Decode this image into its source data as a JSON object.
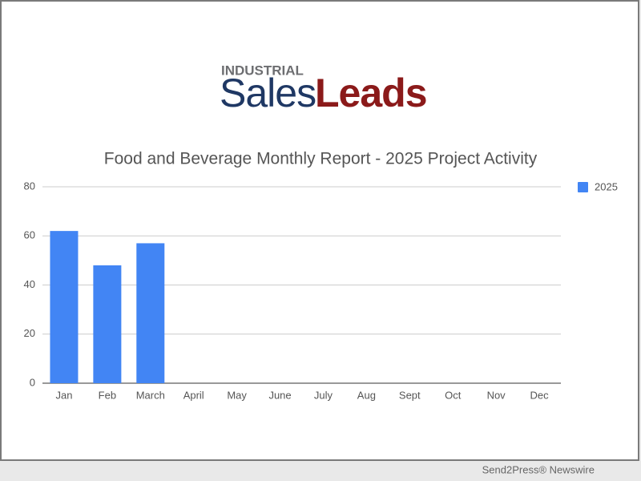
{
  "logo": {
    "top": "INDUSTRIAL",
    "left": "Sales",
    "right": "Leads"
  },
  "footer": "Send2Press® Newswire",
  "chart_data": {
    "type": "bar",
    "title": "Food and Beverage Monthly Report - 2025 Project Activity",
    "categories": [
      "Jan",
      "Feb",
      "March",
      "April",
      "May",
      "June",
      "July",
      "Aug",
      "Sept",
      "Oct",
      "Nov",
      "Dec"
    ],
    "series": [
      {
        "name": "2025",
        "color": "#4285f4",
        "values": [
          62,
          48,
          57,
          null,
          null,
          null,
          null,
          null,
          null,
          null,
          null,
          null
        ]
      }
    ],
    "ylim": [
      0,
      80
    ],
    "yticks": [
      0,
      20,
      40,
      60,
      80
    ],
    "grid": true,
    "legend": "right"
  }
}
